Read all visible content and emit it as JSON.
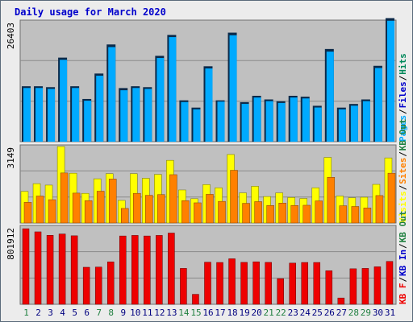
{
  "chart_data": {
    "type": "bar",
    "title": "Daily usage for March 2020",
    "categories": [
      "1",
      "2",
      "3",
      "4",
      "5",
      "6",
      "7",
      "8",
      "9",
      "10",
      "11",
      "12",
      "13",
      "14",
      "15",
      "16",
      "17",
      "18",
      "19",
      "20",
      "21",
      "22",
      "23",
      "24",
      "25",
      "26",
      "27",
      "28",
      "29",
      "30",
      "31"
    ],
    "weekend_days": [
      "1",
      "7",
      "8",
      "14",
      "15",
      "21",
      "22",
      "28",
      "29"
    ],
    "colors": {
      "title": "#0000cc",
      "weekday_label": "#000080",
      "weekend_label": "#208040",
      "plot_bg": "#c0c0c0",
      "pages": "#00aaff",
      "files": "#0000cc",
      "hits": "#00885a",
      "visits": "#ffff00",
      "sites": "#ff8000",
      "kb_in": "#208040",
      "kb_out": "#208040",
      "kb_f": "#ee0000"
    },
    "panels": [
      {
        "id": "hits-panel",
        "max_label": "26403",
        "ymax": 26403,
        "legend": [
          {
            "text": "Pages",
            "color": "#00aaff"
          },
          {
            "text": "Files",
            "color": "#0000cc"
          },
          {
            "text": "Hits",
            "color": "#00885a"
          }
        ],
        "series": [
          {
            "name": "Hits",
            "color": "#0b2a4a",
            "values": [
              12200,
              12200,
              12000,
              18500,
              12200,
              9400,
              15000,
              21400,
              11800,
              12200,
              12000,
              18900,
              23500,
              9100,
              7500,
              16600,
              9100,
              24000,
              8700,
              10100,
              9300,
              8900,
              10100,
              9900,
              7900,
              20400,
              7500,
              8300,
              9300,
              16700,
              27200
            ]
          },
          {
            "name": "Files",
            "color": "#00aaff",
            "values": [
              12000,
              12000,
              11800,
              18200,
              12000,
              9200,
              14700,
              21000,
              11500,
              12000,
              11800,
              18600,
              23200,
              8900,
              7300,
              16300,
              9000,
              23600,
              8500,
              9900,
              9100,
              8700,
              9900,
              9700,
              7700,
              20000,
              7300,
              8100,
              9100,
              16400,
              26800
            ]
          }
        ]
      },
      {
        "id": "visits-panel",
        "max_label": "3149",
        "ymax": 3149,
        "legend": [
          {
            "text": "Visits",
            "color": "#ffff00"
          },
          {
            "text": "Sites",
            "color": "#ff8000"
          },
          {
            "text": "KB Out",
            "color": "#208040"
          }
        ],
        "series": [
          {
            "name": "Visits",
            "color": "#ffff00",
            "values": [
              1300,
              1620,
              1560,
              3150,
              2050,
              1220,
              1820,
              2030,
              930,
              2030,
              1840,
              2000,
              2580,
              1360,
              1000,
              1580,
              1450,
              2820,
              1240,
              1510,
              1090,
              1240,
              1050,
              1010,
              1450,
              2700,
              1110,
              1040,
              1060,
              1590,
              2680
            ]
          },
          {
            "name": "Sites",
            "color": "#ff8000",
            "values": [
              850,
              1110,
              960,
              2060,
              1230,
              920,
              1310,
              1810,
              600,
              1220,
              1140,
              1170,
              1990,
              920,
              830,
              1180,
              890,
              2170,
              810,
              880,
              720,
              820,
              720,
              730,
              910,
              1880,
              710,
              680,
              620,
              1130,
              2050
            ]
          }
        ]
      },
      {
        "id": "kbytes-panel",
        "max_label": "801912",
        "ymax": 820000,
        "legend": [
          {
            "text": "KB F",
            "color": "#ee0000"
          },
          {
            "text": "KB In",
            "color": "#0000cc"
          },
          {
            "text": "KB Out",
            "color": "#208040"
          }
        ],
        "series": [
          {
            "name": "KB F",
            "color": "#ee0000",
            "values": [
              802000,
              769000,
              732000,
              746000,
              727000,
              393000,
              395000,
              450000,
              725000,
              731000,
              725000,
              731000,
              756000,
              381000,
              106000,
              447000,
              444000,
              483000,
              445000,
              451000,
              445000,
              272000,
              437000,
              444000,
              444000,
              356000,
              67000,
              377000,
              381000,
              398000,
              455000
            ]
          }
        ]
      }
    ]
  }
}
